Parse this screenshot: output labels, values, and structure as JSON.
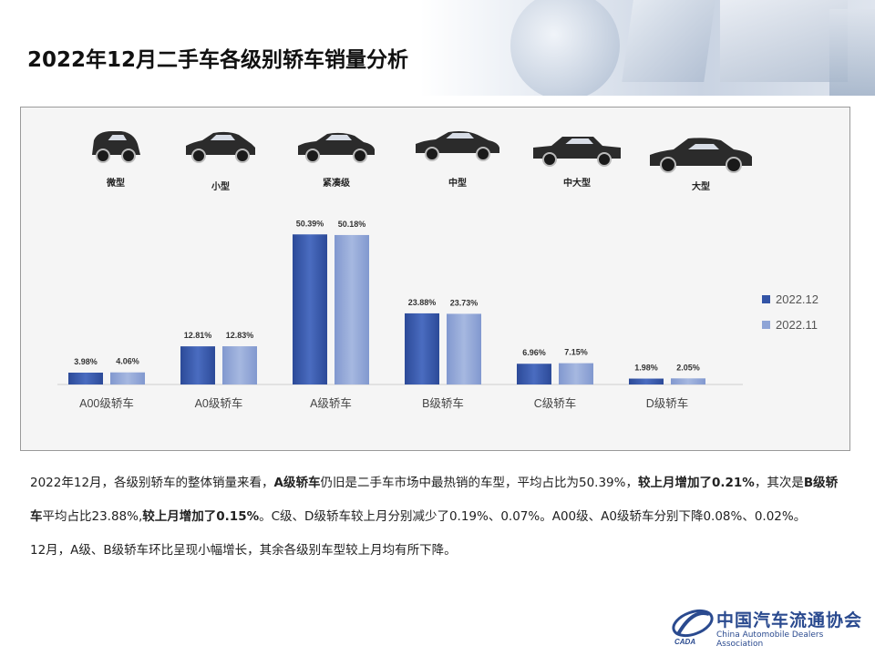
{
  "title": "2022年12月二手车各级别轿车销量分析",
  "car_icons": [
    {
      "label": "微型",
      "icon": "microcar-icon"
    },
    {
      "label": "小型",
      "icon": "hatchback-icon"
    },
    {
      "label": "紧凑级",
      "icon": "compact-sedan-icon"
    },
    {
      "label": "中型",
      "icon": "midsize-sedan-icon"
    },
    {
      "label": "中大型",
      "icon": "large-sedan-icon"
    },
    {
      "label": "大型",
      "icon": "fullsize-sedan-icon"
    }
  ],
  "colors": {
    "series_2022_12": "#3354a6",
    "series_2022_11": "#8ea4d6",
    "logo": "#2a4a8f"
  },
  "chart_data": {
    "type": "bar",
    "categories": [
      "A00级轿车",
      "A0级轿车",
      "A级轿车",
      "B级轿车",
      "C级轿车",
      "D级轿车"
    ],
    "series": [
      {
        "name": "2022.12",
        "values": [
          3.98,
          12.81,
          50.39,
          23.88,
          6.96,
          1.98
        ],
        "labels": [
          "3.98%",
          "12.81%",
          "50.39%",
          "23.88%",
          "6.96%",
          "1.98%"
        ]
      },
      {
        "name": "2022.11",
        "values": [
          4.06,
          12.83,
          50.18,
          23.73,
          7.15,
          2.05
        ],
        "labels": [
          "4.06%",
          "12.83%",
          "50.18%",
          "23.73%",
          "7.15%",
          "2.05%"
        ]
      }
    ],
    "unit": "%",
    "ylim": [
      0,
      55
    ],
    "grid": false,
    "legend_position": "right"
  },
  "paragraphs": [
    {
      "runs": [
        {
          "text": "2022年12月，各级别轿车的整体销量来看，",
          "bold": false
        },
        {
          "text": "A级轿车",
          "bold": true
        },
        {
          "text": "仍旧是二手车市场中最热销的车型，平均占比为50.39%，",
          "bold": false
        },
        {
          "text": "较上月增加了0.21%",
          "bold": true
        },
        {
          "text": "，其次是",
          "bold": false
        },
        {
          "text": "B级轿车",
          "bold": true
        },
        {
          "text": "平均占比23.88%,",
          "bold": false
        },
        {
          "text": "较上月增加了0.15%",
          "bold": true
        },
        {
          "text": "。C级、D级轿车较上月分别减少了0.19%、0.07%。A00级、A0级轿车分别下降0.08%、0.02%。",
          "bold": false
        }
      ]
    },
    {
      "runs": [
        {
          "text": "12月，A级、B级轿车环比呈现小幅增长，其余各级别车型较上月均有所下降。",
          "bold": false
        }
      ]
    }
  ],
  "logo": {
    "name_cn": "中国汽车流通协会",
    "name_en": "China Automobile Dealers Association",
    "mark_text": "CADA"
  }
}
